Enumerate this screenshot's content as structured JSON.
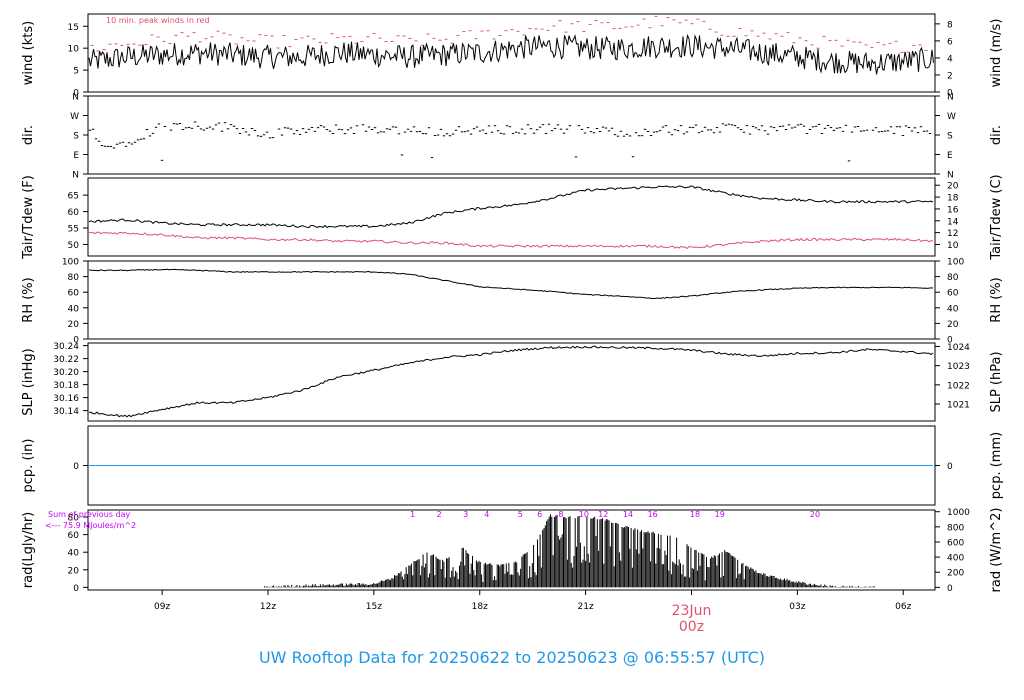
{
  "footer_title": "UW Rooftop Data for 20250622  to  20250623 @ 06:55:57  (UTC)",
  "colors": {
    "line": "#000000",
    "peak": "#DF536B",
    "dew": "#DF536B",
    "precip": "#2297E6",
    "title": "#2297E6",
    "annotation": "#CC00FF",
    "date_label": "#DF536B"
  },
  "x_axis": {
    "range_hours_utc": [
      6.9,
      30.9
    ],
    "ticks": [
      {
        "label": "09z",
        "hour": 9
      },
      {
        "label": "12z",
        "hour": 12
      },
      {
        "label": "15z",
        "hour": 15
      },
      {
        "label": "18z",
        "hour": 18
      },
      {
        "label": "21z",
        "hour": 21
      },
      {
        "label": "00z",
        "hour": 24,
        "hidden": true
      },
      {
        "label": "03z",
        "hour": 27
      },
      {
        "label": "06z",
        "hour": 30
      }
    ],
    "date_label": "23Jun",
    "date_time_label": "00z",
    "date_hour": 24
  },
  "chart_data": [
    {
      "type": "line",
      "id": "wind",
      "ylabel": "wind (kts)",
      "ylabel_right": "wind (m/s)",
      "ylim": [
        0,
        17.8
      ],
      "yticks_left": [
        "0",
        "5",
        "10",
        "15"
      ],
      "yticks_left_values": [
        0,
        5,
        10,
        15
      ],
      "yticks_right": [
        "0",
        "2",
        "4",
        "6",
        "8"
      ],
      "yticks_right_values": [
        0,
        2,
        4,
        6,
        8
      ],
      "right_factor": 1.9438,
      "annotation": "10 min. peak winds in red",
      "series": [
        {
          "name": "wind speed",
          "x": [
            7,
            8,
            9,
            10,
            11,
            12,
            13,
            14,
            15,
            16,
            17,
            18,
            19,
            20,
            21,
            22,
            23,
            24,
            25,
            26,
            27,
            28,
            29,
            30,
            30.9
          ],
          "values": [
            7,
            8,
            8.5,
            9,
            8.5,
            8,
            8,
            9,
            8.5,
            8,
            8.5,
            9,
            10,
            10.5,
            10,
            10,
            10.5,
            10.5,
            10,
            9,
            8,
            7,
            6.5,
            7,
            7.5
          ]
        },
        {
          "name": "peak wind",
          "x": [
            7,
            8,
            9,
            10,
            11,
            12,
            13,
            14,
            15,
            16,
            17,
            18,
            19,
            20,
            21,
            22,
            23,
            24,
            25,
            26,
            27,
            28,
            29,
            30,
            30.9
          ],
          "values": [
            10,
            11,
            12,
            13,
            12,
            11.5,
            11.5,
            12,
            12,
            11.5,
            12,
            13,
            14,
            15,
            15,
            15,
            16,
            15.5,
            14,
            13,
            12,
            11,
            10,
            10.5,
            11
          ]
        }
      ]
    },
    {
      "type": "scatter",
      "id": "dir",
      "ylabel": "dir.",
      "ylabel_right": "dir.",
      "ylim": [
        0,
        360
      ],
      "yticks_left": [
        "N",
        "E",
        "S",
        "W",
        "N"
      ],
      "yticks_values": [
        0,
        90,
        180,
        270,
        360
      ],
      "series": [
        {
          "name": "wind direction",
          "x": [
            7,
            7.5,
            8,
            9,
            10,
            11,
            12,
            13,
            14,
            15,
            16,
            17,
            18,
            19,
            20,
            21,
            22,
            23,
            24,
            25,
            26,
            27,
            28,
            29,
            30,
            30.9
          ],
          "values": [
            200,
            120,
            150,
            220,
            225,
            215,
            185,
            200,
            205,
            210,
            200,
            195,
            200,
            205,
            210,
            200,
            195,
            200,
            205,
            210,
            205,
            210,
            205,
            210,
            200,
            205
          ]
        }
      ]
    },
    {
      "type": "line",
      "id": "temp",
      "ylabel": "Tair/Tdew (F)",
      "ylabel_right": "Tair/Tdew (C)",
      "ylim": [
        46.5,
        70.2
      ],
      "yticks_left": [
        "50",
        "55",
        "60",
        "65"
      ],
      "yticks_left_values": [
        50,
        55,
        60,
        65
      ],
      "yticks_right": [
        "10",
        "12",
        "14",
        "16",
        "18",
        "20"
      ],
      "yticks_right_values": [
        10,
        12,
        14,
        16,
        18,
        20
      ],
      "right_is_celsius": true,
      "series": [
        {
          "name": "Tair",
          "x": [
            7,
            8,
            9,
            10,
            11,
            12,
            13,
            14,
            15,
            16,
            17,
            18,
            19,
            20,
            21,
            22,
            23,
            24,
            25,
            26,
            27,
            28,
            29,
            30,
            30.9
          ],
          "values": [
            57,
            57.5,
            56.5,
            56,
            56,
            56,
            55.5,
            55.5,
            55.5,
            56.5,
            59.5,
            61,
            62,
            64,
            66.5,
            67,
            67.5,
            67.5,
            65.5,
            64,
            63.5,
            63,
            63,
            63,
            63
          ]
        },
        {
          "name": "Tdew",
          "x": [
            7,
            8,
            9,
            10,
            11,
            12,
            13,
            14,
            15,
            16,
            17,
            18,
            19,
            20,
            21,
            22,
            23,
            24,
            25,
            26,
            27,
            28,
            29,
            30,
            30.9
          ],
          "values": [
            53.5,
            53.5,
            53,
            52,
            52,
            51.5,
            51.5,
            51,
            51,
            50.5,
            50.5,
            49.5,
            49.5,
            49.5,
            49.5,
            49.5,
            49.5,
            49,
            50,
            51,
            51.5,
            51.5,
            51.5,
            51.5,
            51
          ]
        }
      ]
    },
    {
      "type": "line",
      "id": "rh",
      "ylabel": "RH (%)",
      "ylabel_right": "RH (%)",
      "ylim": [
        0,
        100
      ],
      "yticks_left": [
        "0",
        "20",
        "40",
        "60",
        "80",
        "100"
      ],
      "yticks_left_values": [
        0,
        20,
        40,
        60,
        80,
        100
      ],
      "yticks_right": [
        "0",
        "20",
        "40",
        "60",
        "80",
        "100"
      ],
      "yticks_right_values": [
        0,
        20,
        40,
        60,
        80,
        100
      ],
      "series": [
        {
          "name": "RH",
          "x": [
            7,
            8,
            9,
            10,
            11,
            12,
            13,
            14,
            15,
            16,
            17,
            18,
            19,
            20,
            21,
            22,
            23,
            24,
            25,
            26,
            27,
            28,
            29,
            30,
            30.9
          ],
          "values": [
            88,
            88,
            89,
            88,
            86,
            86,
            86,
            86,
            86,
            83,
            75,
            67,
            64,
            61,
            57,
            55,
            52,
            55,
            60,
            63,
            65,
            66,
            66,
            66,
            65
          ]
        }
      ]
    },
    {
      "type": "line",
      "id": "slp",
      "ylabel": "SLP (inHg)",
      "ylabel_right": "SLP (hPa)",
      "ylim": [
        30.124,
        30.244
      ],
      "yticks_left": [
        "30.14",
        "30.16",
        "30.18",
        "30.20",
        "30.22",
        "30.24"
      ],
      "yticks_left_values": [
        30.14,
        30.16,
        30.18,
        30.2,
        30.22,
        30.24
      ],
      "yticks_right": [
        "1021",
        "1022",
        "1023",
        "1024"
      ],
      "yticks_right_values": [
        1021,
        1022,
        1023,
        1024
      ],
      "right_factor": 33.8639,
      "series": [
        {
          "name": "SLP",
          "x": [
            7,
            8,
            9,
            10,
            11,
            12,
            13,
            14,
            15,
            16,
            17,
            18,
            19,
            20,
            21,
            22,
            23,
            24,
            25,
            26,
            27,
            28,
            29,
            30,
            30.9
          ],
          "values": [
            30.137,
            30.131,
            30.142,
            30.152,
            30.152,
            30.16,
            30.172,
            30.192,
            30.202,
            30.213,
            30.222,
            30.226,
            30.233,
            30.237,
            30.238,
            30.237,
            30.236,
            30.233,
            30.227,
            30.224,
            30.228,
            30.229,
            30.234,
            30.231,
            30.227
          ]
        }
      ]
    },
    {
      "type": "line",
      "id": "pcp",
      "ylabel": "pcp. (in)",
      "ylabel_right": "pcp. (mm)",
      "ylim": [
        -1,
        1
      ],
      "yticks_left": [
        "0"
      ],
      "yticks_left_values": [
        0
      ],
      "yticks_right": [
        "0"
      ],
      "yticks_right_values": [
        0
      ],
      "series": [
        {
          "name": "precip",
          "x": [
            6.9,
            30.9
          ],
          "values": [
            0,
            0
          ]
        }
      ]
    },
    {
      "type": "bar",
      "id": "rad",
      "ylabel": "rad(Lgly/hr)",
      "ylabel_right": "rad (W/m^2)",
      "ylim": [
        -3,
        88
      ],
      "yticks_left": [
        "0",
        "20",
        "40",
        "60",
        "80"
      ],
      "yticks_left_values": [
        0,
        20,
        40,
        60,
        80
      ],
      "yticks_right": [
        "0",
        "200",
        "400",
        "600",
        "800",
        "1000"
      ],
      "yticks_right_values": [
        0,
        200,
        400,
        600,
        800,
        1000
      ],
      "right_factor": 11.622,
      "annotation_lines": [
        "Sum of previous day",
        "<--- 75.9 MJoules/m^2"
      ],
      "event_markers": [
        {
          "label": "1",
          "hour": 16.1
        },
        {
          "label": "2",
          "hour": 16.85
        },
        {
          "label": "3",
          "hour": 17.6
        },
        {
          "label": "4",
          "hour": 18.2
        },
        {
          "label": "5",
          "hour": 19.15
        },
        {
          "label": "6",
          "hour": 19.7
        },
        {
          "label": "8",
          "hour": 20.3
        },
        {
          "label": "10",
          "hour": 20.95
        },
        {
          "label": "12",
          "hour": 21.5
        },
        {
          "label": "14",
          "hour": 22.2
        },
        {
          "label": "16",
          "hour": 22.9
        },
        {
          "label": "18",
          "hour": 24.1
        },
        {
          "label": "19",
          "hour": 24.8
        },
        {
          "label": "20",
          "hour": 27.5
        }
      ],
      "series": [
        {
          "name": "radiation",
          "x": [
            12,
            13,
            14,
            15,
            15.5,
            16,
            16.5,
            17,
            17.5,
            18,
            18.5,
            19,
            19.5,
            20,
            20.5,
            21,
            21.5,
            22,
            22.5,
            23,
            23.5,
            24,
            24.5,
            25,
            25.5,
            26,
            26.5,
            27,
            27.5,
            28,
            28.5,
            29
          ],
          "values": [
            0.5,
            2,
            3,
            4,
            10,
            25,
            40,
            30,
            45,
            28,
            25,
            28,
            45,
            82,
            80,
            80,
            78,
            70,
            65,
            62,
            57,
            45,
            33,
            42,
            25,
            15,
            10,
            6,
            3,
            1,
            0.3,
            0
          ]
        }
      ]
    }
  ]
}
